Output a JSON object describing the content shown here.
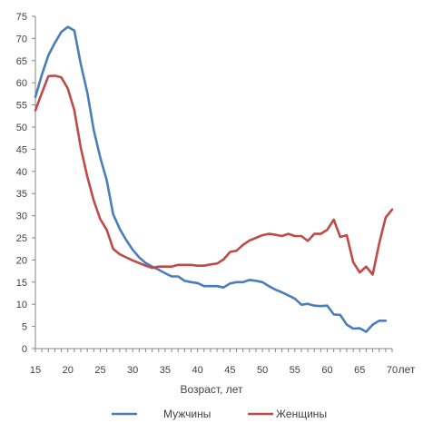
{
  "chart_data": {
    "type": "line",
    "title": "",
    "xlabel": "Возраст, лет",
    "ylabel": "",
    "x_unit_label": "лет",
    "xlim": [
      15,
      70
    ],
    "ylim": [
      0,
      75
    ],
    "x_ticks": [
      15,
      20,
      25,
      30,
      35,
      40,
      45,
      50,
      55,
      60,
      65,
      70
    ],
    "y_ticks": [
      0,
      5,
      10,
      15,
      20,
      25,
      30,
      35,
      40,
      45,
      50,
      55,
      60,
      65,
      70,
      75
    ],
    "grid": "none",
    "legend_position": "bottom",
    "x": [
      15,
      16,
      17,
      18,
      19,
      20,
      21,
      22,
      23,
      24,
      25,
      26,
      27,
      28,
      29,
      30,
      31,
      32,
      33,
      34,
      35,
      36,
      37,
      38,
      39,
      40,
      41,
      42,
      43,
      44,
      45,
      46,
      47,
      48,
      49,
      50,
      51,
      52,
      53,
      54,
      55,
      56,
      57,
      58,
      59,
      60,
      61,
      62,
      63,
      64,
      65,
      66,
      67,
      68,
      69,
      70
    ],
    "series": [
      {
        "name": "Мужчины",
        "color": "#4a7ebb",
        "values": [
          56.8,
          61.8,
          66.2,
          69,
          71.5,
          72.6,
          71.8,
          64.2,
          57.8,
          49.3,
          43.1,
          38,
          30.3,
          27,
          24.5,
          22.3,
          20.6,
          19.3,
          18.5,
          17.8,
          17,
          16.3,
          16.3,
          15.3,
          15,
          14.8,
          14.1,
          14.1,
          14.1,
          13.8,
          14.7,
          15,
          15,
          15.5,
          15.3,
          15,
          14.1,
          13.3,
          12.7,
          12,
          11.3,
          9.9,
          10.1,
          9.7,
          9.6,
          9.7,
          7.7,
          7.6,
          5.4,
          4.5,
          4.6,
          3.8,
          5.4,
          6.3,
          6.3,
          null
        ]
      },
      {
        "name": "Женщины",
        "color": "#be4b48",
        "values": [
          53.8,
          57.7,
          61.5,
          61.6,
          61.2,
          58.7,
          53.8,
          45.3,
          38.8,
          33.4,
          29.2,
          26.8,
          22.5,
          21.3,
          20.6,
          19.9,
          19.3,
          18.7,
          18.2,
          18.5,
          18.5,
          18.5,
          18.9,
          18.9,
          18.9,
          18.7,
          18.7,
          19,
          19.2,
          20.1,
          21.8,
          22.1,
          23.4,
          24.4,
          25,
          25.6,
          25.9,
          25.7,
          25.4,
          25.9,
          25.4,
          25.4,
          24.3,
          25.9,
          25.9,
          26.8,
          29.1,
          25.2,
          25.6,
          19.5,
          17.2,
          18.5,
          16.7,
          23.7,
          29.6,
          31.4
        ]
      }
    ]
  }
}
